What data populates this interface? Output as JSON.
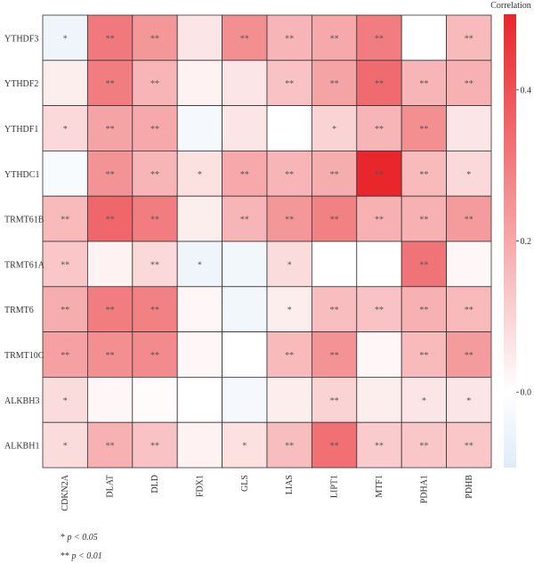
{
  "chart_data": {
    "type": "heatmap",
    "rows": [
      "YTHDF3",
      "YTHDF2",
      "YTHDF1",
      "YTHDC1",
      "TRMT61B",
      "TRMT61A",
      "TRMT6",
      "TRMT10C",
      "ALKBH3",
      "ALKBH1"
    ],
    "columns": [
      "CDKN2A",
      "DLAT",
      "DLD",
      "FDX1",
      "GLS",
      "LIAS",
      "LIPT1",
      "MTF1",
      "PDHA1",
      "PDHB"
    ],
    "values": [
      [
        -0.05,
        0.31,
        0.24,
        0.06,
        0.26,
        0.17,
        0.2,
        0.3,
        0.0,
        0.16
      ],
      [
        0.04,
        0.3,
        0.17,
        0.03,
        0.06,
        0.14,
        0.21,
        0.34,
        0.17,
        0.18
      ],
      [
        0.09,
        0.21,
        0.2,
        -0.03,
        0.06,
        0.0,
        0.1,
        0.17,
        0.26,
        0.06
      ],
      [
        -0.02,
        0.25,
        0.17,
        0.07,
        0.2,
        0.17,
        0.19,
        0.5,
        0.16,
        0.09
      ],
      [
        0.16,
        0.35,
        0.3,
        0.04,
        0.17,
        0.24,
        0.29,
        0.18,
        0.18,
        0.23
      ],
      [
        0.13,
        0.03,
        0.09,
        -0.05,
        -0.04,
        0.08,
        0.0,
        0.0,
        0.32,
        0.02
      ],
      [
        0.19,
        0.3,
        0.29,
        0.02,
        -0.04,
        0.04,
        0.15,
        0.14,
        0.18,
        0.16
      ],
      [
        0.22,
        0.26,
        0.27,
        0.02,
        0.0,
        0.16,
        0.25,
        0.02,
        0.16,
        0.23
      ],
      [
        0.08,
        0.02,
        0.01,
        0.0,
        -0.03,
        0.04,
        0.1,
        0.04,
        0.06,
        0.06
      ],
      [
        0.08,
        0.18,
        0.14,
        0.03,
        0.07,
        0.15,
        0.33,
        0.12,
        0.13,
        0.13
      ]
    ],
    "significance": [
      [
        "*",
        "**",
        "**",
        "",
        "**",
        "**",
        "**",
        "**",
        "",
        "**"
      ],
      [
        "",
        "**",
        "**",
        "",
        "",
        "**",
        "**",
        "**",
        "**",
        "**"
      ],
      [
        "*",
        "**",
        "**",
        "",
        "",
        "",
        "*",
        "**",
        "**",
        ""
      ],
      [
        "",
        "**",
        "**",
        "*",
        "**",
        "**",
        "**",
        "**",
        "**",
        "*"
      ],
      [
        "**",
        "**",
        "**",
        "",
        "**",
        "**",
        "**",
        "**",
        "**",
        "**"
      ],
      [
        "**",
        "",
        "**",
        "*",
        "",
        "*",
        "",
        "",
        "**",
        ""
      ],
      [
        "**",
        "**",
        "**",
        "",
        "",
        "*",
        "**",
        "**",
        "**",
        "**"
      ],
      [
        "**",
        "**",
        "**",
        "",
        "",
        "**",
        "**",
        "",
        "**",
        "**"
      ],
      [
        "*",
        "",
        "",
        "",
        "",
        "",
        "**",
        "",
        "*",
        "*"
      ],
      [
        "*",
        "**",
        "**",
        "",
        "*",
        "**",
        "**",
        "**",
        "**",
        "**"
      ]
    ],
    "colorbar": {
      "title": "Correlation",
      "ticks": [
        0.0,
        0.2,
        0.4
      ],
      "tick_labels": [
        "0.0",
        "0.2",
        "0.4"
      ],
      "range": [
        -0.1,
        0.5
      ],
      "color_negative": "#deebf7",
      "color_zero": "#ffffff",
      "color_positive": "#e8262b"
    },
    "grid": true,
    "legend_position": "right"
  },
  "notes": {
    "single": {
      "star": "*",
      "text": "p < 0.05"
    },
    "double": {
      "star": "**",
      "text": "p < 0.01"
    }
  }
}
